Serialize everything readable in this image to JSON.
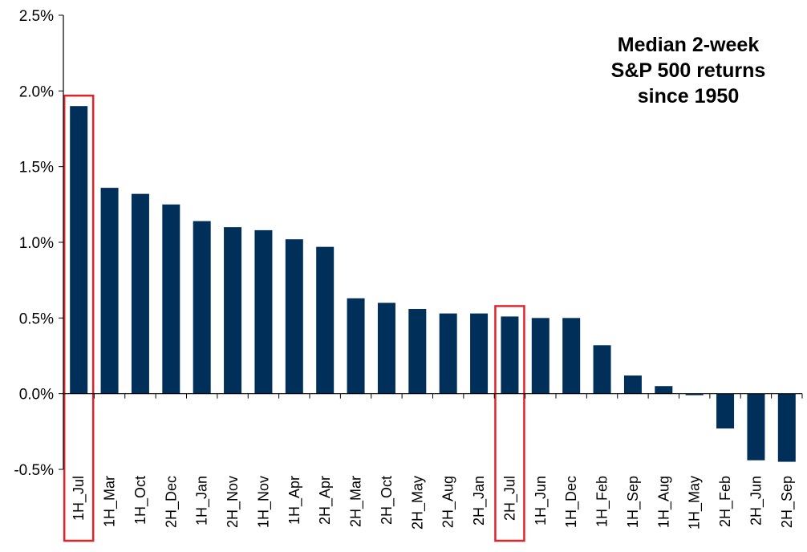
{
  "chart_data": {
    "type": "bar",
    "title": [
      "Median 2-week",
      "S&P 500 returns",
      "since 1950"
    ],
    "xlabel": "",
    "ylabel": "",
    "ylim": [
      -0.5,
      2.5
    ],
    "y_tick_values": [
      -0.5,
      0.0,
      0.5,
      1.0,
      1.5,
      2.0,
      2.5
    ],
    "y_tick_labels": [
      "-0.5%",
      "0.0%",
      "0.5%",
      "1.0%",
      "1.5%",
      "2.0%",
      "2.5%"
    ],
    "categories": [
      "1H_Jul",
      "1H_Mar",
      "1H_Oct",
      "2H_Dec",
      "1H_Jan",
      "2H_Nov",
      "1H_Nov",
      "1H_Apr",
      "2H_Apr",
      "2H_Mar",
      "2H_Oct",
      "2H_May",
      "2H_Aug",
      "2H_Jan",
      "2H_Jul",
      "1H_Jun",
      "1H_Dec",
      "1H_Feb",
      "1H_Sep",
      "1H_Aug",
      "1H_May",
      "2H_Feb",
      "2H_Jun",
      "2H_Sep"
    ],
    "values": [
      1.9,
      1.36,
      1.32,
      1.25,
      1.14,
      1.1,
      1.08,
      1.02,
      0.97,
      0.63,
      0.6,
      0.56,
      0.53,
      0.53,
      0.51,
      0.5,
      0.5,
      0.32,
      0.12,
      0.05,
      -0.01,
      -0.23,
      -0.44,
      -0.45
    ],
    "highlighted": [
      "1H_Jul",
      "2H_Jul"
    ],
    "grid": false,
    "colors": {
      "bar": "#00305a",
      "highlight": "#e2232a",
      "axis": "#000000"
    }
  }
}
